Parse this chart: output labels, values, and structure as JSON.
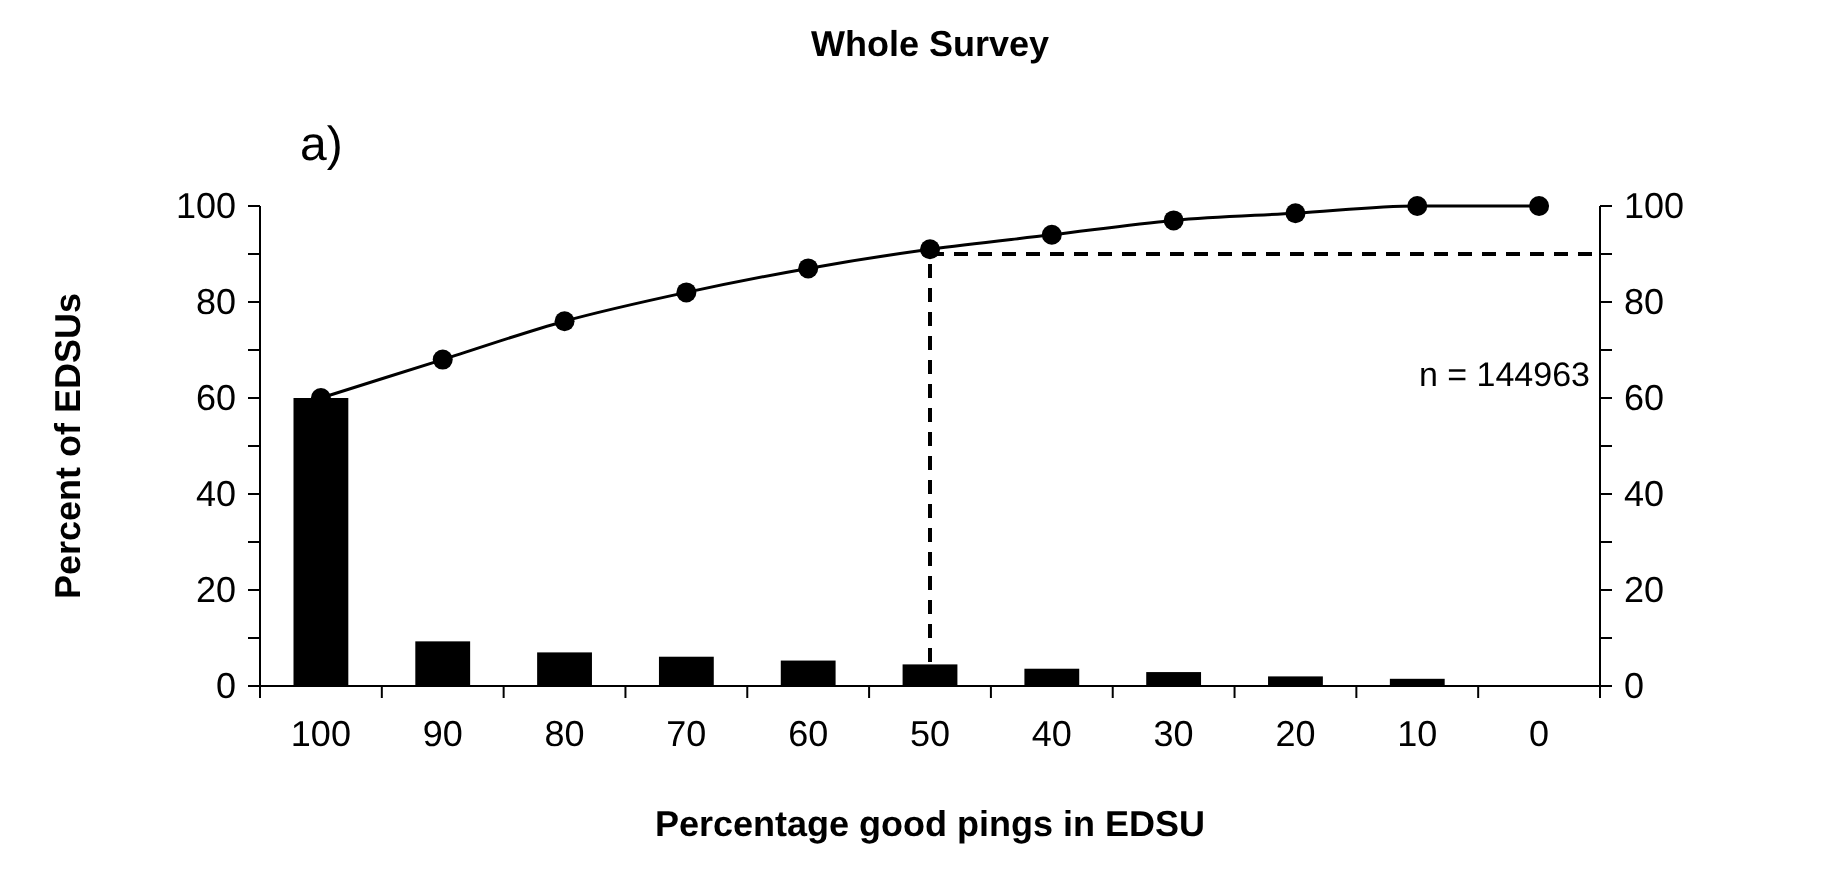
{
  "chart_data": {
    "type": "bar",
    "title": "Whole Survey",
    "xlabel": "Percentage good pings in EDSU",
    "ylabel": "Percent of EDSUs",
    "annotations": [
      "a)",
      "n = 144963"
    ],
    "categories": [
      "100",
      "90",
      "80",
      "70",
      "60",
      "50",
      "40",
      "30",
      "20",
      "10",
      "0"
    ],
    "series": [
      {
        "color": "#000000",
        "values": [
          60,
          9.3,
          7,
          6.1,
          5.3,
          4.5,
          3.6,
          2.9,
          2,
          1.5,
          0
        ]
      },
      {
        "type": "line",
        "color": "#000000",
        "marker": "circle",
        "line_style": "solid",
        "values": [
          60,
          68,
          76,
          82,
          87,
          91,
          94,
          97,
          98.5,
          100,
          100
        ]
      }
    ],
    "ylim": [
      0,
      100
    ],
    "yticks": [
      0,
      {
        "value": 10,
        "label": null
      },
      20,
      {
        "value": 30,
        "label": null
      },
      40,
      {
        "value": 50,
        "label": null
      },
      60,
      {
        "value": 70,
        "label": null
      },
      80,
      {
        "value": 90,
        "label": null
      },
      100
    ],
    "y2lim": [
      0,
      100
    ],
    "y2ticks": [
      0,
      {
        "value": 10,
        "label": null
      },
      20,
      {
        "value": 30,
        "label": null
      },
      40,
      {
        "value": 50,
        "label": null
      },
      60,
      {
        "value": 70,
        "label": null
      },
      80,
      {
        "value": 90,
        "label": null
      },
      100
    ],
    "ref_lines": [
      {
        "axis": "x",
        "value": "50",
        "line_style": "dashed"
      },
      {
        "axis": "y",
        "value": 90,
        "line_style": "dashed"
      }
    ],
    "grid": false
  }
}
